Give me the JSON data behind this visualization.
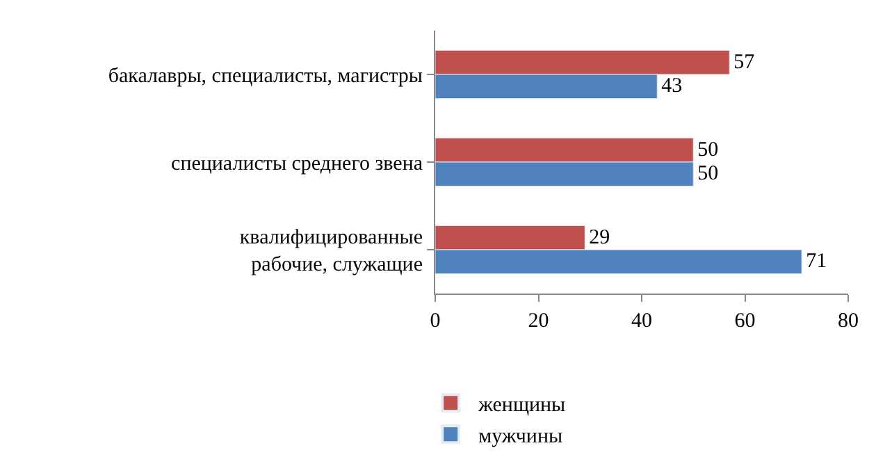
{
  "chart_data": {
    "type": "bar",
    "orientation": "horizontal",
    "categories": [
      "бакалавры, специалисты, магистры",
      "специалисты среднего звена",
      "квалифицированные\nрабочие, служащие"
    ],
    "series": [
      {
        "name": "женщины",
        "color": "#c0504d",
        "values": [
          57,
          50,
          29
        ]
      },
      {
        "name": "мужчины",
        "color": "#4f81bd",
        "values": [
          43,
          50,
          71
        ]
      }
    ],
    "xlim": [
      0,
      80
    ],
    "xticks": [
      0,
      20,
      40,
      60,
      80
    ],
    "data_labels": true,
    "grid": false,
    "legend": "bottom"
  }
}
